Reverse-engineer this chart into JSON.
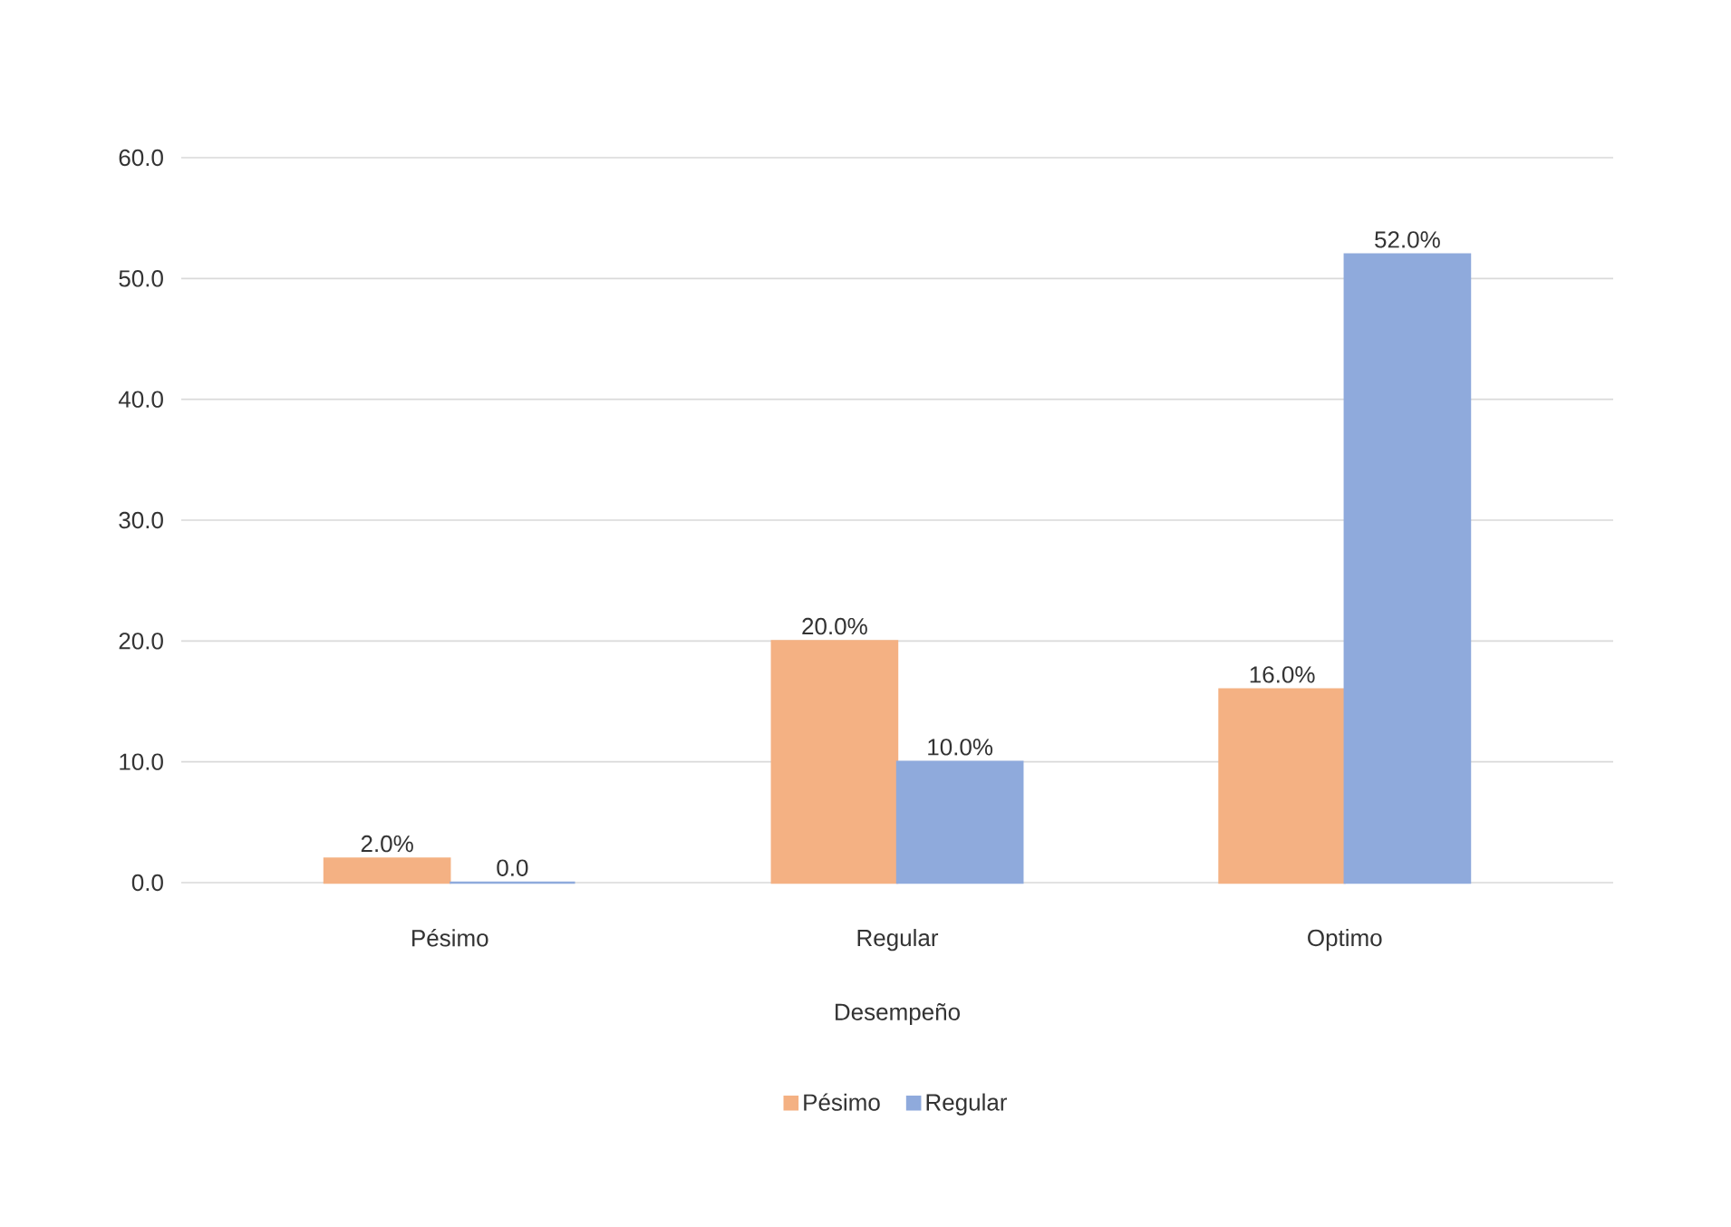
{
  "chart_data": {
    "type": "bar",
    "xlabel": "Desempeño",
    "categories": [
      "Pésimo",
      "Regular",
      "Optimo"
    ],
    "series": [
      {
        "name": "Pésimo",
        "color": "#f4b183",
        "values": [
          2,
          20,
          16
        ],
        "value_labels": [
          "2.0%",
          "20.0%",
          "16.0%"
        ]
      },
      {
        "name": "Regular",
        "color": "#8faadc",
        "values": [
          0,
          10,
          52
        ],
        "value_labels": [
          "0.0",
          "10.0%",
          "52.0%"
        ]
      }
    ],
    "ylim": [
      0,
      60
    ],
    "yticks": [
      {
        "value": 0,
        "label": "0.0"
      },
      {
        "value": 10,
        "label": "10.0"
      },
      {
        "value": 20,
        "label": "20.0"
      },
      {
        "value": 30,
        "label": "30.0"
      },
      {
        "value": 40,
        "label": "40.0"
      },
      {
        "value": 50,
        "label": "50.0"
      },
      {
        "value": 60,
        "label": "60.0"
      }
    ],
    "grid": "y",
    "legend": "bottom"
  }
}
